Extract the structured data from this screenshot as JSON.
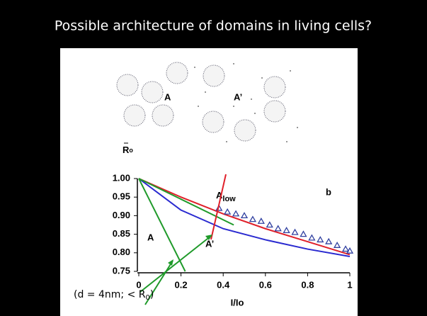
{
  "slide": {
    "title": "Possible architecture of domains in living cells?",
    "note": [
      "(d = 4nm; < R",
      "0",
      ")"
    ]
  },
  "diagram": {
    "label_a": "A",
    "label_a_prime": "A’",
    "r0": [
      "R",
      "o"
    ]
  },
  "chart_data": {
    "type": "line",
    "xlabel": "I/Io",
    "annotations": {
      "b": "b",
      "a_low": [
        "A",
        "low"
      ],
      "a": "A",
      "a_prime": "A’"
    },
    "xlim": [
      0,
      1
    ],
    "ylim": [
      0.75,
      1
    ],
    "xticks": [
      0,
      0.2,
      0.4,
      0.6,
      0.8,
      1
    ],
    "yticks": [
      {
        "value": 1,
        "label": "1.00"
      },
      0.95,
      {
        "value": 0.9,
        "label": "0.90"
      },
      0.85,
      {
        "value": 0.8,
        "label": "0.80"
      },
      0.75
    ],
    "series": [
      {
        "color": "#e0202a",
        "x": [
          0,
          0.2,
          0.4,
          0.6,
          0.8,
          1
        ],
        "values": [
          1,
          0.95,
          0.905,
          0.865,
          0.83,
          0.795
        ]
      },
      {
        "color": "#2a2ad0",
        "x": [
          0,
          0.2,
          0.4,
          0.6,
          0.8,
          1
        ],
        "values": [
          1,
          0.915,
          0.865,
          0.835,
          0.81,
          0.79
        ]
      },
      {
        "color": "#1f9a2a",
        "x": [
          0,
          0.22
        ],
        "values": [
          1,
          0.75
        ]
      },
      {
        "color": "#1f9a2a",
        "x": [
          0,
          0.45
        ],
        "values": [
          1,
          0.875
        ]
      },
      {
        "type": "scatter",
        "color": "#3040a0",
        "x": [
          0.38,
          0.42,
          0.46,
          0.5,
          0.54,
          0.58,
          0.62,
          0.66,
          0.7,
          0.74,
          0.78,
          0.82,
          0.86,
          0.9,
          0.94,
          0.98,
          1
        ],
        "values": [
          0.92,
          0.91,
          0.905,
          0.9,
          0.89,
          0.885,
          0.875,
          0.865,
          0.86,
          0.855,
          0.85,
          0.84,
          0.835,
          0.83,
          0.82,
          0.81,
          0.805
        ]
      }
    ]
  }
}
